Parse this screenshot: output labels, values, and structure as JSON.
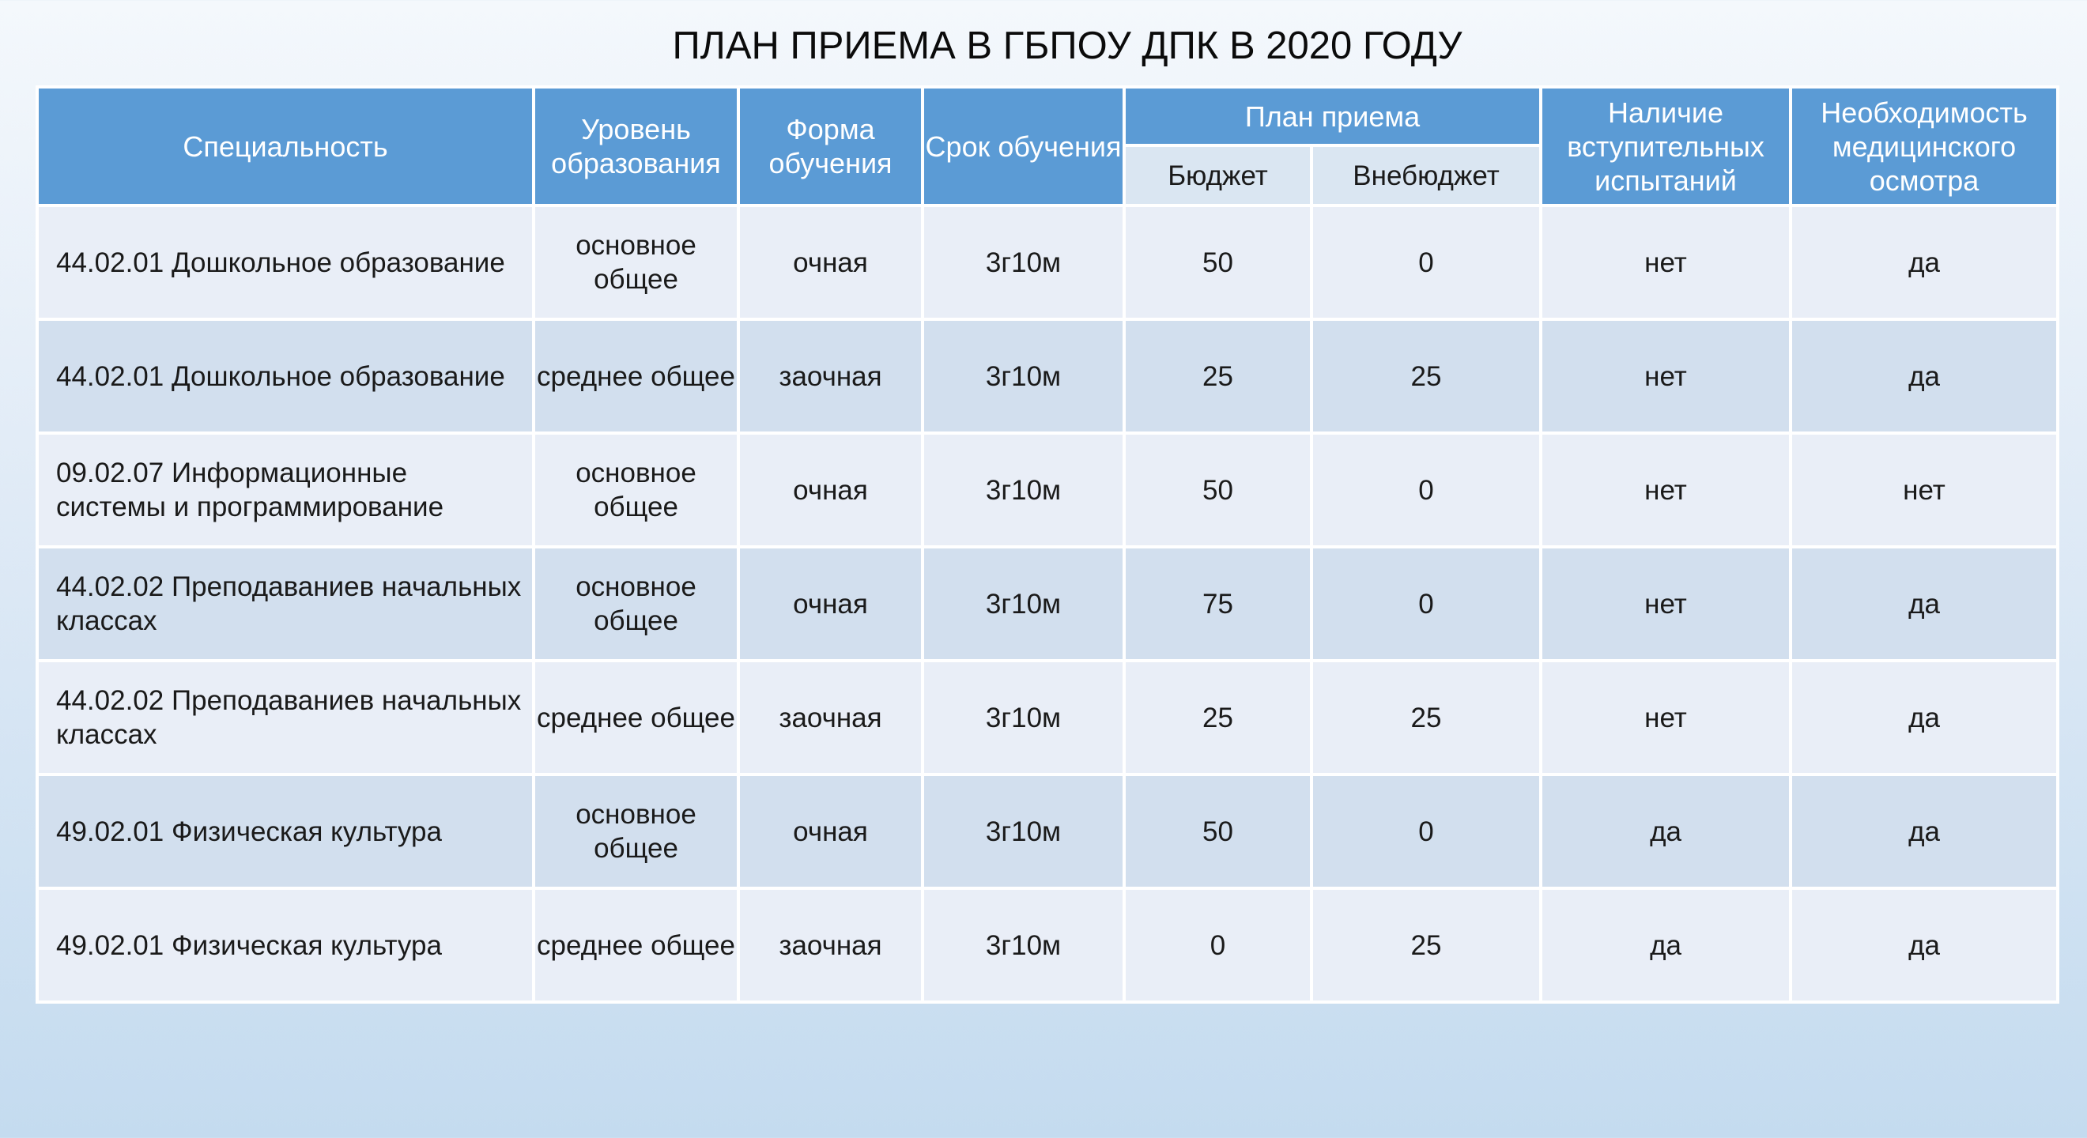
{
  "title": "ПЛАН ПРИЕМА В ГБПОУ ДПК В 2020 ГОДУ",
  "headers": {
    "specialty": "Специальность",
    "level": "Уровень образования",
    "form": "Форма обучения",
    "duration": "Срок обучения",
    "plan": "План приема",
    "budget": "Бюджет",
    "nonbudget": "Внебюджет",
    "exams": "Наличие вступительных испытаний",
    "medical": "Необходимость медицинского осмотра"
  },
  "rows": [
    {
      "specialty": "44.02.01 Дошкольное образование",
      "level": "основное общее",
      "form": "очная",
      "duration": "3г10м",
      "budget": "50",
      "nonbudget": "0",
      "exams": "нет",
      "medical": "да"
    },
    {
      "specialty": "44.02.01 Дошкольное образование",
      "level": "среднее общее",
      "form": "заочная",
      "duration": "3г10м",
      "budget": "25",
      "nonbudget": "25",
      "exams": "нет",
      "medical": "да"
    },
    {
      "specialty": "09.02.07 Информационные системы и программирование",
      "level": "основное общее",
      "form": "очная",
      "duration": "3г10м",
      "budget": "50",
      "nonbudget": "0",
      "exams": "нет",
      "medical": "нет"
    },
    {
      "specialty": "44.02.02 Преподаваниев начальных классах",
      "level": "основное общее",
      "form": "очная",
      "duration": "3г10м",
      "budget": "75",
      "nonbudget": "0",
      "exams": "нет",
      "medical": "да"
    },
    {
      "specialty": "44.02.02 Преподаваниев начальных классах",
      "level": "среднее общее",
      "form": "заочная",
      "duration": "3г10м",
      "budget": "25",
      "nonbudget": "25",
      "exams": "нет",
      "medical": "да"
    },
    {
      "specialty": "49.02.01 Физическая культура",
      "level": "основное общее",
      "form": "очная",
      "duration": "3г10м",
      "budget": "50",
      "nonbudget": "0",
      "exams": "да",
      "medical": "да"
    },
    {
      "specialty": "49.02.01 Физическая культура",
      "level": "среднее общее",
      "form": "заочная",
      "duration": "3г10м",
      "budget": "0",
      "nonbudget": "25",
      "exams": "да",
      "medical": "да"
    }
  ]
}
